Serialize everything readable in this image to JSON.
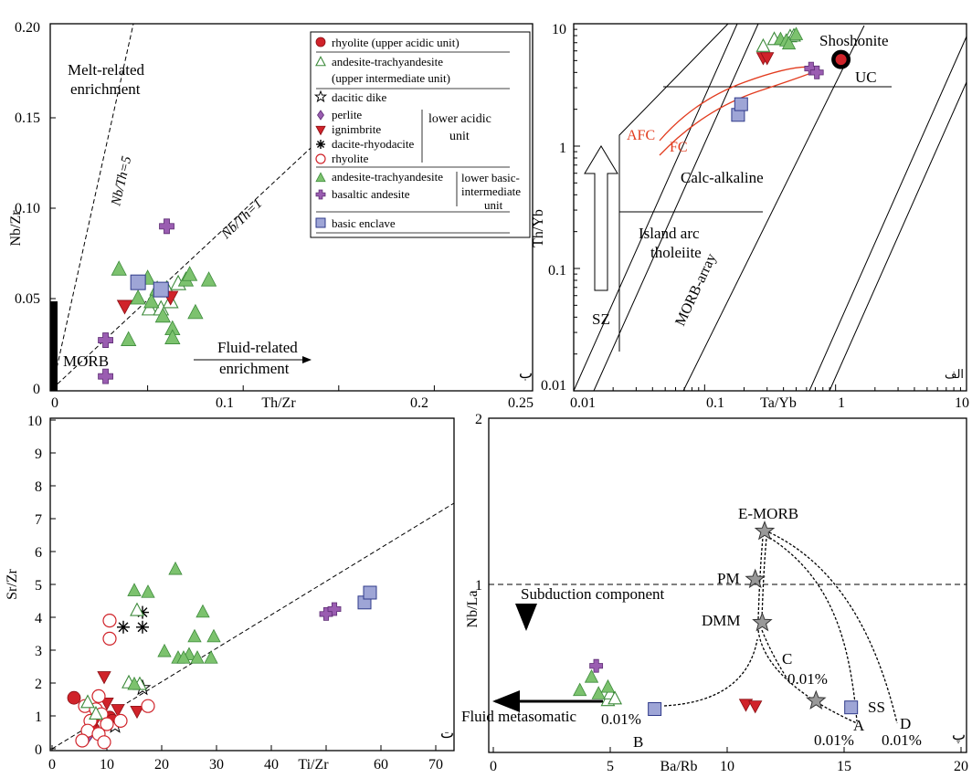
{
  "colors": {
    "red": "#d0232a",
    "green": "#7cc26e",
    "green_stroke": "#3c8a3a",
    "purple": "#9a5db1",
    "blue": "#9ea5d6",
    "blue_stroke": "#2f3a8a",
    "curve_red": "#e23b1e"
  },
  "panel_b": {
    "corner_label": "ب",
    "xlabel": "Th/Zr",
    "ylabel": "Nb/Zr",
    "x_ticks": [
      "0",
      "0.05",
      "0.1",
      "0.15",
      "0.2",
      "0.25"
    ],
    "x_tick_labels": [
      "0",
      "0.1",
      "0.2",
      "0.25"
    ],
    "y_ticks": [
      "0",
      "0.05",
      "0.10",
      "0.15",
      "0.20"
    ],
    "ann_melt": [
      "Melt-related",
      "enrichment"
    ],
    "ann_fluid": [
      "Fluid-related",
      "enrichment"
    ],
    "ann_nbth5": "Nb/Th=5",
    "ann_nbth1": "Nb/Th=1",
    "ann_morb": "MORB",
    "legend": {
      "rhyolite_upper": "rhyolite (upper acidic unit)",
      "andesite_upper_1": "andesite-trachyandesite",
      "andesite_upper_2": "(upper intermediate unit)",
      "dacitic_dike": "dacitic dike",
      "perlite": "perlite",
      "ignimbrite": "ignimbrite",
      "dacite_rhyodacite": "dacite-rhyodacite",
      "rhyolite_lower": "rhyolite",
      "lower_acidic_1": "lower acidic",
      "lower_acidic_2": "unit",
      "andesite_lower": "andesite-trachyandesite",
      "basaltic_andesite": "basaltic andesite",
      "lower_basic_1": "lower basic-",
      "lower_basic_2": "intermediate",
      "lower_basic_3": "unit",
      "basic_enclave": "basic enclave"
    }
  },
  "panel_alef": {
    "corner_label": "الف",
    "xlabel": "Ta/Yb",
    "ylabel": "Th/Yb",
    "x_ticks": [
      "0.01",
      "0.1",
      "1",
      "10"
    ],
    "y_ticks": [
      "0.01",
      "0.1",
      "1",
      "10"
    ],
    "ann_shoshonite": "Shoshonite",
    "ann_uc": "UC",
    "ann_afc": "AFC",
    "ann_fc": "FC",
    "ann_calc": "Calc-alkaline",
    "ann_island_1": "Island arc",
    "ann_island_2": "tholeiite",
    "ann_morb_array": "MORB-array",
    "ann_sz": "SZ"
  },
  "panel_te": {
    "corner_label": "ت",
    "xlabel": "Ti/Zr",
    "ylabel": "Sr/Zr",
    "x_ticks": [
      "0",
      "10",
      "20",
      "30",
      "40",
      "50",
      "60",
      "70"
    ],
    "x_tick_labels": [
      "0",
      "10",
      "20",
      "30",
      "40",
      "60",
      "70"
    ],
    "y_ticks": [
      "0",
      "1",
      "2",
      "3",
      "4",
      "5",
      "6",
      "7",
      "8",
      "9",
      "10"
    ]
  },
  "panel_pe": {
    "corner_label": "پ",
    "xlabel": "Ba/Rb",
    "ylabel": "Nb/La",
    "x_ticks": [
      "0",
      "5",
      "10",
      "15",
      "20"
    ],
    "y_ticks": [
      "1",
      "2"
    ],
    "ann_emorb": "E-MORB",
    "ann_pm": "PM",
    "ann_dmm": "DMM",
    "ann_subduction": "Subduction component",
    "ann_fluid": "Fluid metasomatic",
    "ann_b": "B",
    "ann_b_pct": "0.01%",
    "ann_c": "C",
    "ann_c_pct": "0.01%",
    "ann_a": "A",
    "ann_a_pct": "0.01%",
    "ann_d": "D",
    "ann_d_pct": "0.01%",
    "ann_ss": "SS"
  },
  "chart_data": [
    {
      "panel": "ب",
      "type": "scatter",
      "xlabel": "Th/Zr",
      "ylabel": "Nb/Zr",
      "xlim": [
        0,
        0.25
      ],
      "ylim": [
        0,
        0.2
      ],
      "reference_lines": [
        {
          "label": "Nb/Th=5",
          "slope": 5
        },
        {
          "label": "Nb/Th=1",
          "slope": 1
        }
      ],
      "morb_field": {
        "x": 0,
        "y_range": [
          0,
          0.05
        ]
      },
      "series": [
        {
          "name": "rhyolite (upper acidic unit)",
          "symbol": "circle-filled",
          "color": "red",
          "points": []
        },
        {
          "name": "andesite-trachyandesite (upper intermediate unit)",
          "symbol": "triangle-open",
          "color": "green",
          "points": [
            [
              0.051,
              0.044
            ],
            [
              0.057,
              0.044
            ],
            [
              0.062,
              0.048
            ],
            [
              0.06,
              0.055
            ],
            [
              0.066,
              0.058
            ]
          ]
        },
        {
          "name": "ignimbrite",
          "symbol": "triangle-down-open",
          "color": "red",
          "points": [
            [
              0.038,
              0.046
            ],
            [
              0.062,
              0.051
            ]
          ]
        },
        {
          "name": "andesite-trachyandesite (lower basic-intermediate unit)",
          "symbol": "triangle-filled",
          "color": "green",
          "points": [
            [
              0.035,
              0.066
            ],
            [
              0.04,
              0.027
            ],
            [
              0.045,
              0.05
            ],
            [
              0.05,
              0.061
            ],
            [
              0.052,
              0.048
            ],
            [
              0.055,
              0.055
            ],
            [
              0.058,
              0.04
            ],
            [
              0.063,
              0.033
            ],
            [
              0.063,
              0.028
            ],
            [
              0.07,
              0.06
            ],
            [
              0.072,
              0.063
            ],
            [
              0.075,
              0.042
            ],
            [
              0.082,
              0.06
            ]
          ]
        },
        {
          "name": "basaltic andesite",
          "symbol": "cross",
          "color": "purple",
          "points": [
            [
              0.028,
              0.027
            ],
            [
              0.028,
              0.007
            ],
            [
              0.06,
              0.09
            ]
          ]
        },
        {
          "name": "basic enclave",
          "symbol": "square",
          "color": "blue",
          "points": [
            [
              0.045,
              0.059
            ],
            [
              0.057,
              0.055
            ]
          ]
        }
      ]
    },
    {
      "panel": "الف",
      "type": "scatter",
      "xlabel": "Ta/Yb",
      "ylabel": "Th/Yb",
      "x_scale": "log",
      "y_scale": "log",
      "xlim": [
        0.01,
        10
      ],
      "ylim": [
        0.01,
        10
      ],
      "fields": [
        "Shoshonite",
        "Calc-alkaline",
        "Island arc tholeiite",
        "MORB-array",
        "SZ"
      ],
      "reference_points": [
        {
          "name": "UC",
          "x": 1.1,
          "y": 5.1
        }
      ],
      "trends": [
        "AFC",
        "FC"
      ],
      "series": [
        {
          "name": "ignimbrite",
          "symbol": "triangle-down-filled",
          "color": "red",
          "points": [
            [
              0.28,
              5.3
            ],
            [
              0.3,
              5.3
            ]
          ]
        },
        {
          "name": "andesite-trachyandesite (upper intermediate unit)",
          "symbol": "triangle-open",
          "color": "green",
          "points": [
            [
              0.28,
              6.5
            ],
            [
              0.34,
              7.4
            ],
            [
              0.45,
              7.8
            ],
            [
              0.48,
              7.9
            ]
          ]
        },
        {
          "name": "andesite-trachyandesite (lower basic-intermediate unit)",
          "symbol": "triangle-filled",
          "color": "green",
          "points": [
            [
              0.38,
              7.4
            ],
            [
              0.42,
              7.2
            ],
            [
              0.44,
              6.8
            ],
            [
              0.5,
              8.1
            ]
          ]
        },
        {
          "name": "basaltic andesite",
          "symbol": "cross",
          "color": "purple",
          "points": [
            [
              0.65,
              4.3
            ],
            [
              0.72,
              4.0
            ]
          ]
        },
        {
          "name": "basic enclave",
          "symbol": "square",
          "color": "blue",
          "points": [
            [
              0.18,
              1.8
            ],
            [
              0.19,
              2.2
            ]
          ]
        }
      ]
    },
    {
      "panel": "ت",
      "type": "scatter",
      "xlabel": "Ti/Zr",
      "ylabel": "Sr/Zr",
      "xlim": [
        0,
        75
      ],
      "ylim": [
        0,
        10
      ],
      "reference_lines": [
        {
          "from": [
            0,
            0
          ],
          "to": [
            75,
            7.4
          ]
        }
      ],
      "series": [
        {
          "name": "rhyolite (upper acidic unit)",
          "symbol": "circle-filled",
          "color": "red",
          "points": [
            [
              4,
              1.55
            ],
            [
              7.5,
              0.6
            ],
            [
              10.5,
              0.95
            ],
            [
              11,
              0.85
            ]
          ]
        },
        {
          "name": "dacitic dike",
          "symbol": "star",
          "color": "black",
          "points": [
            [
              16.5,
              1.85
            ],
            [
              11.5,
              0.7
            ]
          ]
        },
        {
          "name": "perlite",
          "symbol": "diamond",
          "color": "purple",
          "points": [
            [
              6.5,
              0.35
            ]
          ]
        },
        {
          "name": "ignimbrite",
          "symbol": "triangle-down-open",
          "color": "red",
          "points": [
            [
              9.5,
              2.2
            ],
            [
              10,
              1.4
            ],
            [
              12,
              1.2
            ],
            [
              15.5,
              1.15
            ],
            [
              8,
              0.9
            ]
          ]
        },
        {
          "name": "dacite-rhyodacite",
          "symbol": "asterisk",
          "color": "black",
          "points": [
            [
              13,
              3.7
            ],
            [
              16.5,
              3.7
            ],
            [
              16.5,
              4.15
            ]
          ]
        },
        {
          "name": "rhyolite (lower acidic unit)",
          "symbol": "circle-open",
          "color": "red",
          "points": [
            [
              10.5,
              3.9
            ],
            [
              10.5,
              3.35
            ],
            [
              17.5,
              1.3
            ],
            [
              8.5,
              1.6
            ],
            [
              6,
              1.3
            ],
            [
              8,
              1.2
            ],
            [
              9,
              1.05
            ],
            [
              7,
              0.85
            ],
            [
              10,
              0.75
            ],
            [
              6.5,
              0.55
            ],
            [
              8.5,
              0.45
            ],
            [
              5.5,
              0.25
            ],
            [
              9.5,
              0.2
            ],
            [
              12.5,
              0.85
            ]
          ]
        },
        {
          "name": "andesite-trachyandesite (upper intermediate unit)",
          "symbol": "triangle-open",
          "color": "green",
          "points": [
            [
              6.5,
              1.4
            ],
            [
              8,
              1.05
            ],
            [
              15.5,
              4.2
            ],
            [
              14,
              2.0
            ],
            [
              16,
              1.95
            ]
          ]
        },
        {
          "name": "andesite-trachyandesite (lower basic-intermediate unit)",
          "symbol": "triangle-filled",
          "color": "green",
          "points": [
            [
              15,
              4.8
            ],
            [
              17.5,
              4.75
            ],
            [
              22.5,
              5.45
            ],
            [
              27.5,
              4.15
            ],
            [
              26,
              3.4
            ],
            [
              29.5,
              3.4
            ],
            [
              20.5,
              2.95
            ],
            [
              23,
              2.75
            ],
            [
              25,
              2.85
            ],
            [
              26.5,
              2.75
            ],
            [
              29,
              2.75
            ],
            [
              24,
              2.75
            ],
            [
              15,
              1.95
            ]
          ]
        },
        {
          "name": "basaltic andesite",
          "symbol": "cross",
          "color": "purple",
          "points": [
            [
              50,
              4.1
            ],
            [
              51.5,
              4.25
            ]
          ]
        },
        {
          "name": "basic enclave",
          "symbol": "square",
          "color": "blue",
          "points": [
            [
              57,
              4.45
            ],
            [
              58,
              4.75
            ]
          ]
        }
      ]
    },
    {
      "panel": "پ",
      "type": "scatter",
      "xlabel": "Ba/Rb",
      "ylabel": "Nb/La",
      "xlim": [
        0,
        20
      ],
      "ylim": [
        0,
        2
      ],
      "reference_lines": [
        {
          "y": 1
        }
      ],
      "reference_points": [
        {
          "name": "E-MORB",
          "x": 11.6,
          "y": 1.32
        },
        {
          "name": "PM",
          "x": 11.2,
          "y": 1.03
        },
        {
          "name": "DMM",
          "x": 11.5,
          "y": 0.77
        },
        {
          "name": "SS",
          "x": 13.8,
          "y": 0.3
        }
      ],
      "mixing_curves": [
        "A",
        "B",
        "C",
        "D"
      ],
      "series": [
        {
          "name": "ignimbrite",
          "symbol": "triangle-down-filled",
          "color": "red",
          "points": [
            [
              10.8,
              0.28
            ],
            [
              11.2,
              0.27
            ]
          ]
        },
        {
          "name": "andesite-trachyandesite (upper intermediate unit)",
          "symbol": "triangle-open",
          "color": "green",
          "points": [
            [
              4.9,
              0.3
            ],
            [
              5.0,
              0.34
            ],
            [
              5.2,
              0.31
            ]
          ]
        },
        {
          "name": "andesite-trachyandesite (lower basic-intermediate unit)",
          "symbol": "triangle-filled",
          "color": "green",
          "points": [
            [
              3.7,
              0.36
            ],
            [
              4.2,
              0.44
            ],
            [
              4.5,
              0.34
            ],
            [
              4.9,
              0.38
            ]
          ]
        },
        {
          "name": "basaltic andesite",
          "symbol": "cross",
          "color": "purple",
          "points": [
            [
              4.4,
              0.51
            ]
          ]
        },
        {
          "name": "basic enclave",
          "symbol": "square",
          "color": "blue",
          "points": [
            [
              6.9,
              0.25
            ],
            [
              15.3,
              0.26
            ]
          ]
        }
      ]
    }
  ]
}
